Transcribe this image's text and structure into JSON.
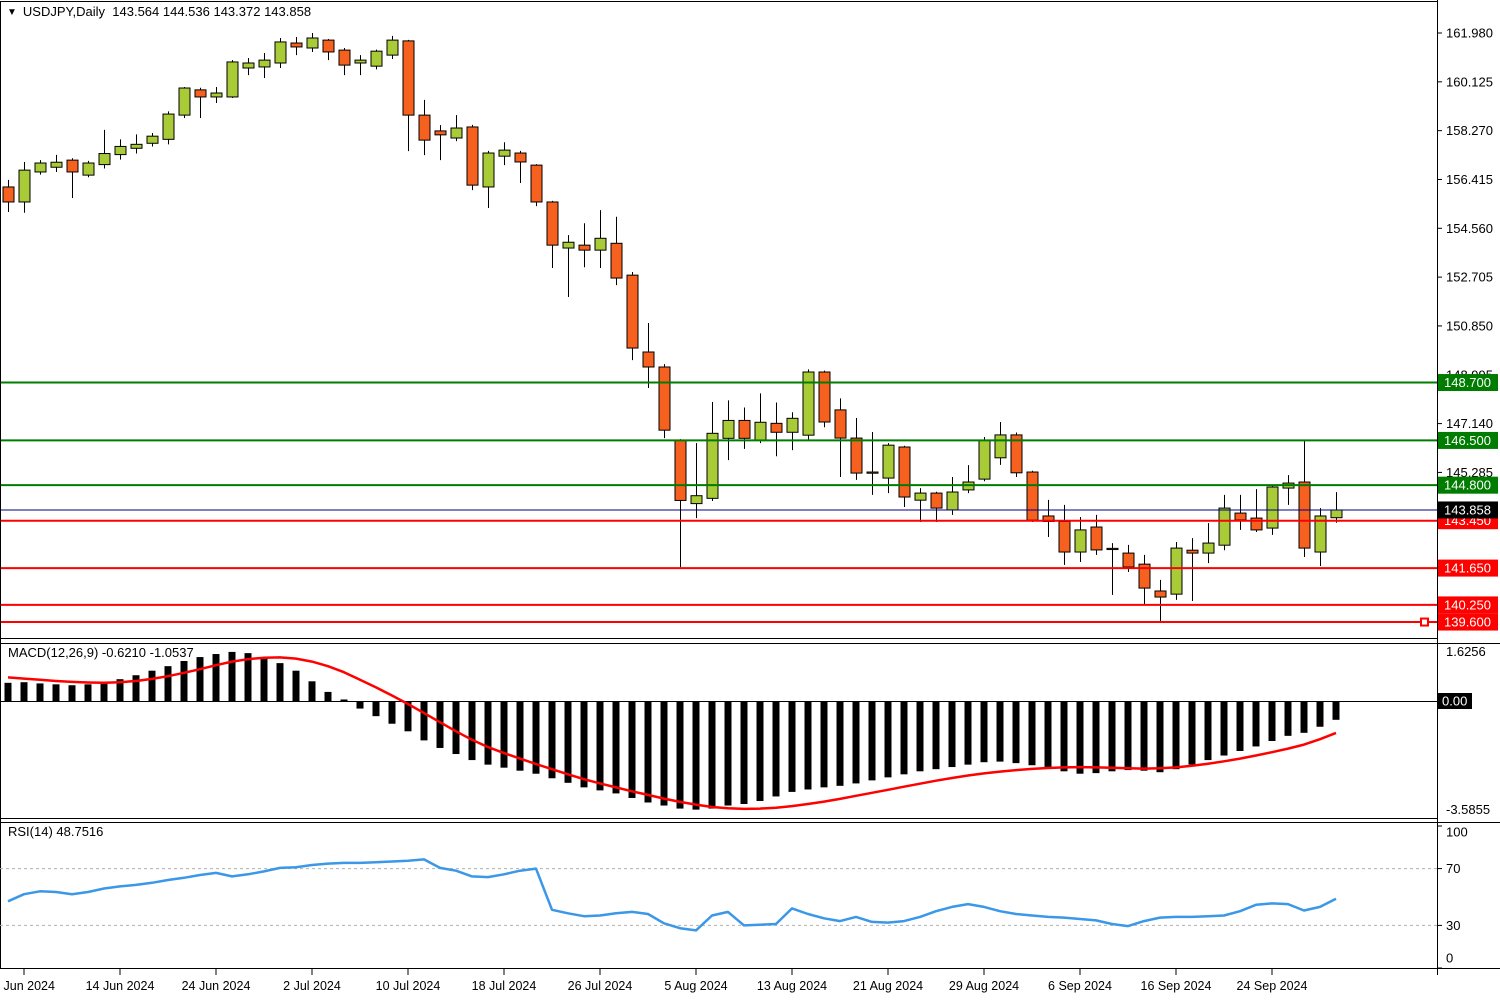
{
  "window": {
    "title_symbol": "USDJPY,Daily",
    "title_ohlc": "143.564 144.536 143.372 143.858"
  },
  "colors": {
    "background": "#ffffff",
    "bull_candle": "#a9cb38",
    "bear_candle": "#f6611f",
    "candle_outline": "#000000",
    "wick": "#000000",
    "resistance_line": "#007d00",
    "support_line": "#ff0000",
    "current_price_line": "#000080",
    "current_price_badge": "#000000",
    "macd_histogram": "#000000",
    "macd_signal_line": "#ff0000",
    "rsi_line": "#3b97e8",
    "rsi_level_dotted": "#b0b0b0",
    "axis_text": "#000000",
    "frame": "#000000"
  },
  "price_axis": {
    "ticks": [
      "161.980",
      "160.125",
      "158.270",
      "156.415",
      "154.560",
      "152.705",
      "150.850",
      "148.995",
      "147.140",
      "145.285"
    ],
    "level_badges": [
      {
        "value": "148.700",
        "type": "resistance"
      },
      {
        "value": "146.500",
        "type": "resistance"
      },
      {
        "value": "144.800",
        "type": "resistance"
      },
      {
        "value": "143.450",
        "type": "support"
      },
      {
        "value": "141.650",
        "type": "support"
      },
      {
        "value": "140.250",
        "type": "support"
      },
      {
        "value": "139.600",
        "type": "support"
      }
    ],
    "current_badge": {
      "value": "143.858"
    }
  },
  "time_axis": {
    "labels": [
      {
        "text": "6 Jun 2024",
        "bar": 1
      },
      {
        "text": "14 Jun 2024",
        "bar": 7
      },
      {
        "text": "24 Jun 2024",
        "bar": 13
      },
      {
        "text": "2 Jul 2024",
        "bar": 19
      },
      {
        "text": "10 Jul 2024",
        "bar": 25
      },
      {
        "text": "18 Jul 2024",
        "bar": 31
      },
      {
        "text": "26 Jul 2024",
        "bar": 37
      },
      {
        "text": "5 Aug 2024",
        "bar": 43
      },
      {
        "text": "13 Aug 2024",
        "bar": 49
      },
      {
        "text": "21 Aug 2024",
        "bar": 55
      },
      {
        "text": "29 Aug 2024",
        "bar": 61
      },
      {
        "text": "6 Sep 2024",
        "bar": 67
      },
      {
        "text": "16 Sep 2024",
        "bar": 73
      },
      {
        "text": "24 Sep 2024",
        "bar": 79
      }
    ]
  },
  "macd_panel": {
    "label": "MACD(12,26,9) -0.6210 -1.0537",
    "axis_max": "1.6256",
    "axis_zero": "0.00",
    "axis_min": "-3.5855"
  },
  "rsi_panel": {
    "label": "RSI(14) 48.7516",
    "axis_ticks": [
      "100",
      "70",
      "30",
      "0"
    ],
    "overbought_level": 70,
    "oversold_level": 30
  },
  "chart_data": {
    "type": "candlestick",
    "symbol": "USDJPY",
    "timeframe": "Daily",
    "title": "USDJPY,Daily 143.564 144.536 143.372 143.858",
    "price_range_shown": [
      139.0,
      162.3
    ],
    "horizontal_levels": {
      "resistance": [
        148.7,
        146.5,
        144.8
      ],
      "support": [
        143.45,
        141.65,
        140.25,
        139.6
      ],
      "current_price": 143.858
    },
    "ohlc": [
      [
        156.13,
        156.4,
        155.18,
        155.56
      ],
      [
        155.56,
        157.08,
        155.15,
        156.77
      ],
      [
        156.7,
        157.15,
        156.6,
        157.04
      ],
      [
        156.88,
        157.35,
        156.7,
        157.07
      ],
      [
        157.15,
        157.22,
        155.71,
        156.7
      ],
      [
        156.58,
        157.12,
        156.5,
        157.04
      ],
      [
        156.98,
        158.3,
        156.83,
        157.4
      ],
      [
        157.36,
        157.94,
        157.17,
        157.67
      ],
      [
        157.6,
        158.13,
        157.4,
        157.75
      ],
      [
        157.79,
        158.18,
        157.67,
        158.06
      ],
      [
        157.94,
        159.0,
        157.75,
        158.9
      ],
      [
        158.86,
        159.93,
        158.75,
        159.89
      ],
      [
        159.82,
        159.9,
        158.75,
        159.55
      ],
      [
        159.55,
        159.93,
        159.32,
        159.7
      ],
      [
        159.55,
        160.95,
        159.51,
        160.88
      ],
      [
        160.65,
        161.03,
        160.38,
        160.84
      ],
      [
        160.69,
        161.22,
        160.27,
        160.95
      ],
      [
        160.84,
        161.79,
        160.65,
        161.64
      ],
      [
        161.6,
        161.83,
        161.14,
        161.45
      ],
      [
        161.41,
        161.98,
        161.26,
        161.79
      ],
      [
        161.71,
        161.75,
        160.95,
        161.26
      ],
      [
        161.33,
        161.41,
        160.38,
        160.76
      ],
      [
        160.84,
        161.14,
        160.38,
        160.95
      ],
      [
        160.72,
        161.35,
        160.6,
        161.29
      ],
      [
        161.14,
        161.87,
        160.99,
        161.71
      ],
      [
        161.68,
        161.72,
        157.49,
        158.86
      ],
      [
        158.86,
        159.44,
        157.34,
        157.91
      ],
      [
        158.26,
        158.48,
        157.15,
        158.11
      ],
      [
        157.99,
        158.86,
        157.87,
        158.37
      ],
      [
        158.41,
        158.49,
        156.01,
        156.2
      ],
      [
        156.13,
        157.5,
        155.33,
        157.42
      ],
      [
        157.3,
        157.83,
        156.96,
        157.53
      ],
      [
        157.42,
        157.5,
        156.28,
        157.08
      ],
      [
        156.96,
        157.0,
        155.4,
        155.56
      ],
      [
        155.56,
        155.6,
        153.05,
        153.92
      ],
      [
        153.81,
        154.3,
        151.95,
        154.03
      ],
      [
        153.92,
        154.75,
        153.08,
        153.73
      ],
      [
        153.73,
        155.25,
        153.05,
        154.18
      ],
      [
        153.99,
        155.0,
        152.4,
        152.67
      ],
      [
        152.78,
        152.9,
        149.55,
        150.01
      ],
      [
        149.86,
        150.96,
        148.49,
        149.29
      ],
      [
        149.29,
        149.4,
        146.59,
        146.89
      ],
      [
        146.5,
        146.55,
        141.68,
        144.22
      ],
      [
        144.1,
        146.4,
        143.55,
        144.4
      ],
      [
        144.3,
        147.96,
        144.2,
        146.77
      ],
      [
        146.58,
        148.02,
        145.75,
        147.26
      ],
      [
        147.26,
        147.75,
        146.18,
        146.58
      ],
      [
        146.51,
        148.29,
        146.4,
        147.19
      ],
      [
        147.15,
        147.94,
        145.9,
        146.81
      ],
      [
        146.81,
        147.57,
        146.13,
        147.34
      ],
      [
        146.7,
        149.2,
        146.51,
        149.1
      ],
      [
        149.1,
        149.15,
        147.0,
        147.2
      ],
      [
        147.66,
        148.1,
        145.11,
        146.59
      ],
      [
        146.59,
        147.35,
        145.0,
        145.26
      ],
      [
        145.3,
        146.82,
        144.43,
        145.26
      ],
      [
        145.07,
        146.4,
        144.5,
        146.32
      ],
      [
        146.25,
        146.3,
        143.97,
        144.35
      ],
      [
        144.23,
        144.69,
        143.4,
        144.5
      ],
      [
        144.5,
        144.55,
        143.4,
        143.93
      ],
      [
        143.86,
        145.11,
        143.67,
        144.54
      ],
      [
        144.62,
        145.56,
        144.5,
        144.92
      ],
      [
        145.03,
        146.63,
        144.95,
        146.51
      ],
      [
        145.84,
        147.2,
        145.57,
        146.71
      ],
      [
        146.71,
        146.8,
        145.11,
        145.27
      ],
      [
        145.3,
        145.35,
        143.4,
        143.47
      ],
      [
        143.63,
        144.24,
        142.83,
        143.42
      ],
      [
        143.42,
        144.05,
        141.77,
        142.26
      ],
      [
        142.26,
        143.59,
        141.88,
        143.1
      ],
      [
        143.21,
        143.67,
        142.15,
        142.34
      ],
      [
        142.4,
        142.6,
        140.63,
        142.38
      ],
      [
        142.22,
        142.53,
        141.5,
        141.69
      ],
      [
        141.8,
        142.15,
        140.25,
        140.89
      ],
      [
        140.78,
        141.2,
        139.6,
        140.55
      ],
      [
        140.66,
        142.64,
        140.44,
        142.41
      ],
      [
        142.33,
        142.79,
        140.4,
        142.22
      ],
      [
        142.22,
        143.36,
        141.84,
        142.6
      ],
      [
        142.52,
        144.43,
        142.33,
        143.93
      ],
      [
        143.74,
        144.43,
        143.1,
        143.48
      ],
      [
        143.55,
        144.65,
        143.02,
        143.1
      ],
      [
        143.17,
        144.8,
        142.91,
        144.73
      ],
      [
        144.69,
        145.18,
        144.05,
        144.88
      ],
      [
        144.92,
        146.49,
        142.07,
        142.41
      ],
      [
        142.26,
        143.93,
        141.73,
        143.63
      ],
      [
        143.564,
        144.536,
        143.372,
        143.858
      ]
    ],
    "macd_histogram": [
      0.6,
      0.62,
      0.58,
      0.55,
      0.52,
      0.55,
      0.62,
      0.72,
      0.85,
      1.0,
      1.15,
      1.32,
      1.45,
      1.55,
      1.62,
      1.58,
      1.45,
      1.25,
      1.0,
      0.65,
      0.3,
      0.05,
      -0.25,
      -0.5,
      -0.75,
      -1.0,
      -1.3,
      -1.55,
      -1.75,
      -1.95,
      -2.1,
      -2.2,
      -2.3,
      -2.4,
      -2.55,
      -2.7,
      -2.85,
      -2.95,
      -3.05,
      -3.2,
      -3.35,
      -3.45,
      -3.55,
      -3.5855,
      -3.55,
      -3.45,
      -3.4,
      -3.3,
      -3.15,
      -3.0,
      -2.92,
      -2.85,
      -2.8,
      -2.72,
      -2.62,
      -2.52,
      -2.42,
      -2.32,
      -2.25,
      -2.18,
      -2.1,
      -2.02,
      -2.0,
      -2.05,
      -2.12,
      -2.22,
      -2.32,
      -2.4,
      -2.38,
      -2.32,
      -2.28,
      -2.3,
      -2.35,
      -2.25,
      -2.1,
      -1.95,
      -1.8,
      -1.65,
      -1.5,
      -1.32,
      -1.15,
      -1.05,
      -0.85,
      -0.621
    ],
    "macd_signal": [
      0.78,
      0.74,
      0.7,
      0.66,
      0.63,
      0.61,
      0.6,
      0.62,
      0.66,
      0.73,
      0.82,
      0.93,
      1.05,
      1.18,
      1.3,
      1.38,
      1.43,
      1.44,
      1.4,
      1.3,
      1.15,
      0.95,
      0.7,
      0.45,
      0.18,
      -0.1,
      -0.4,
      -0.7,
      -1.0,
      -1.28,
      -1.52,
      -1.72,
      -1.9,
      -2.08,
      -2.25,
      -2.42,
      -2.58,
      -2.72,
      -2.85,
      -2.98,
      -3.1,
      -3.22,
      -3.33,
      -3.42,
      -3.5,
      -3.54,
      -3.56,
      -3.55,
      -3.52,
      -3.47,
      -3.4,
      -3.32,
      -3.23,
      -3.13,
      -3.03,
      -2.93,
      -2.83,
      -2.73,
      -2.63,
      -2.54,
      -2.46,
      -2.39,
      -2.33,
      -2.28,
      -2.24,
      -2.21,
      -2.19,
      -2.18,
      -2.19,
      -2.2,
      -2.22,
      -2.23,
      -2.22,
      -2.19,
      -2.14,
      -2.07,
      -1.99,
      -1.9,
      -1.8,
      -1.69,
      -1.57,
      -1.44,
      -1.26,
      -1.0537
    ],
    "rsi": [
      47,
      52,
      54,
      53.5,
      52,
      53.5,
      56,
      57.5,
      58.5,
      60,
      62,
      63.5,
      65.5,
      67,
      64.5,
      66,
      68,
      70.5,
      71,
      72.5,
      73.5,
      74,
      74,
      74.5,
      75,
      75.5,
      76.5,
      70.5,
      68.5,
      64.5,
      64,
      66,
      68.5,
      70,
      41,
      38.5,
      36.5,
      37,
      38.5,
      39.5,
      38,
      31.5,
      28,
      26.5,
      37,
      39.5,
      30,
      30.5,
      31,
      42,
      38,
      35,
      33,
      36,
      32.5,
      32,
      33,
      36,
      40,
      43,
      45,
      43,
      40,
      38,
      37,
      36,
      35.5,
      34.5,
      33.5,
      31,
      29.5,
      33,
      35.5,
      36,
      36,
      36.5,
      37,
      40,
      44.5,
      45.5,
      45,
      40.5,
      43,
      48.7516
    ]
  }
}
